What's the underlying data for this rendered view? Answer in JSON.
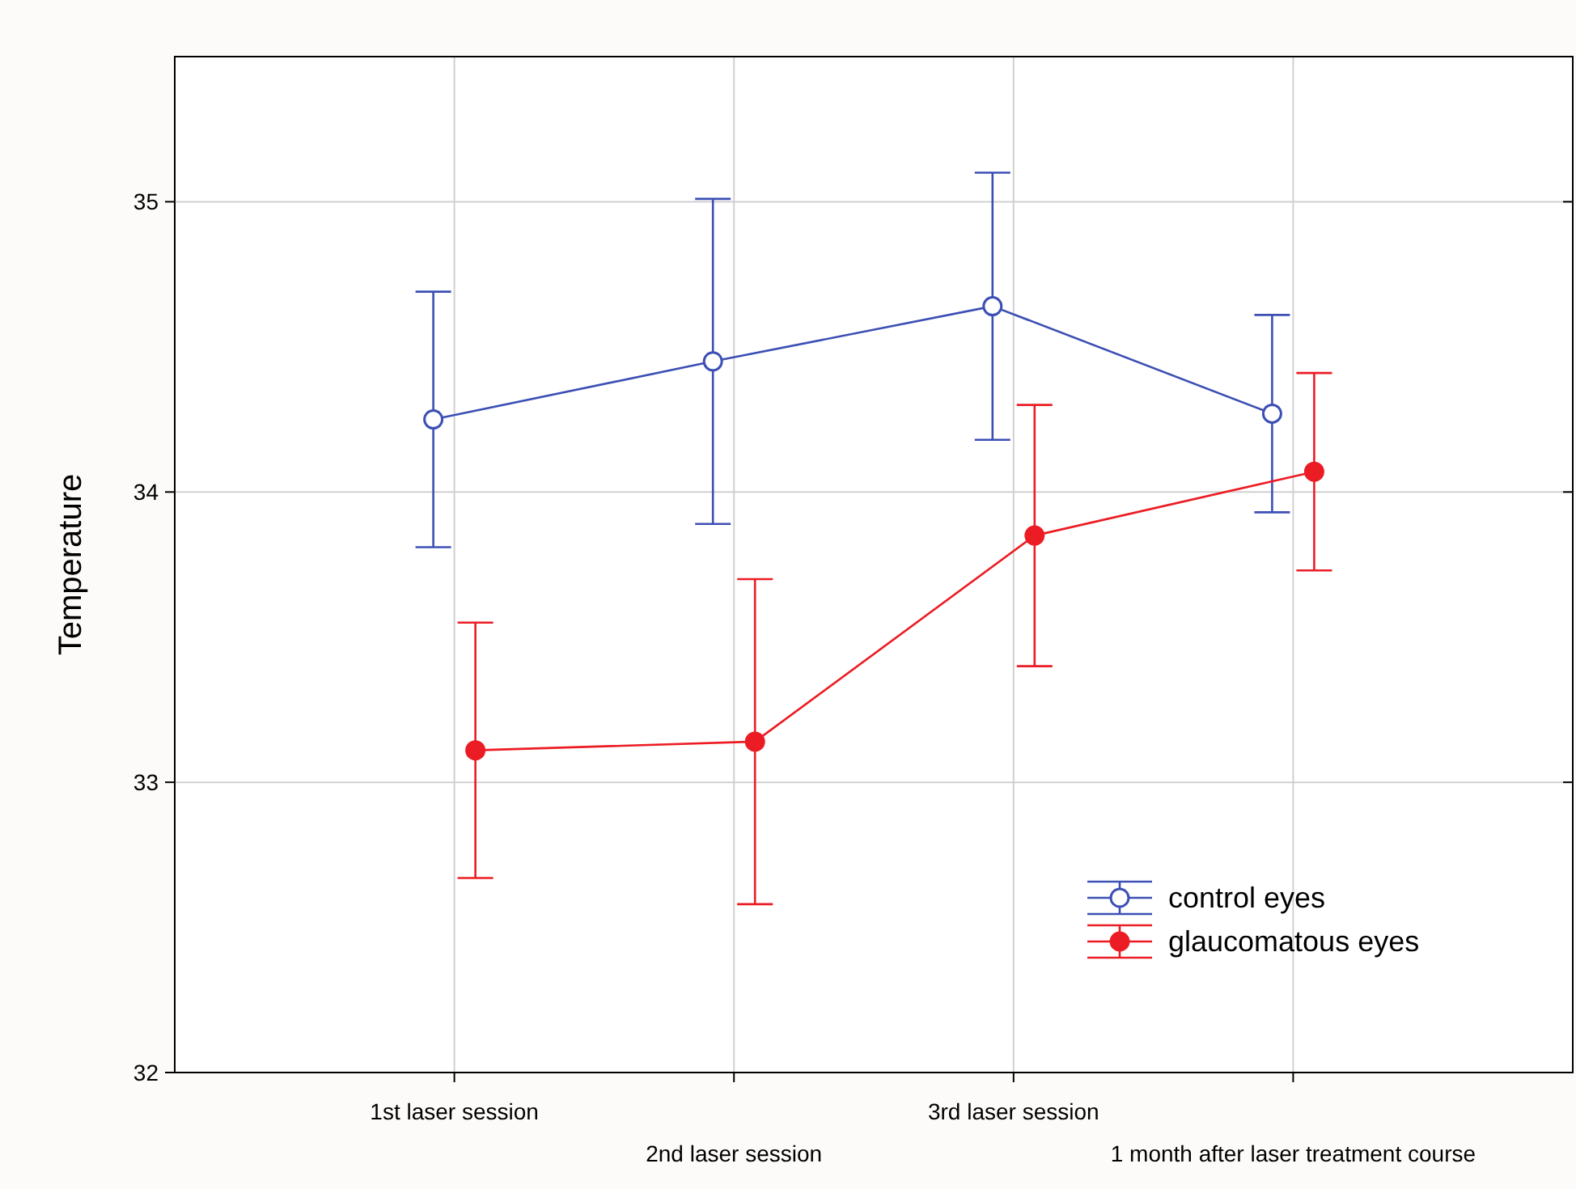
{
  "chart_data": {
    "type": "line",
    "ylabel": "Temperature",
    "categories": [
      "1st laser session",
      "2nd laser session",
      "3rd laser session",
      "1 month after laser treatment course"
    ],
    "series": [
      {
        "name": "control eyes",
        "color": "#3c4fb4",
        "values": [
          34.25,
          34.45,
          34.64,
          34.27
        ],
        "errors": [
          0.44,
          0.56,
          0.46,
          0.34
        ]
      },
      {
        "name": "glaucomatous eyes",
        "color": "#ec1c24",
        "values": [
          33.11,
          33.14,
          33.85,
          34.07
        ],
        "errors": [
          0.44,
          0.56,
          0.45,
          0.34
        ]
      }
    ],
    "ylim": [
      32,
      35.5
    ],
    "yticks": [
      32,
      33,
      34,
      35
    ],
    "grid": true,
    "legend": "bottom right",
    "marker": "circle",
    "line_style": "solid"
  }
}
